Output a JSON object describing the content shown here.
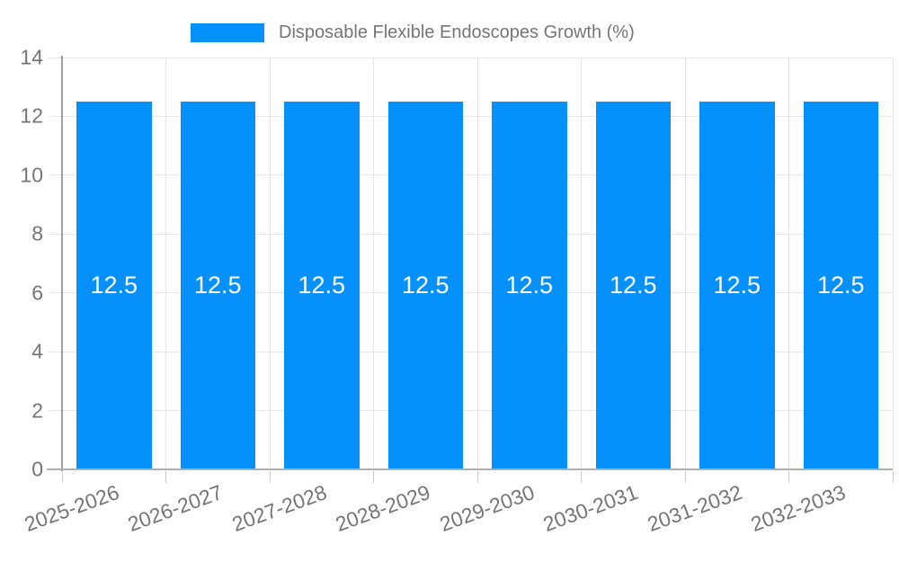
{
  "legend": {
    "label": "Disposable Flexible Endoscopes Growth (%)"
  },
  "chart_data": {
    "type": "bar",
    "title": "",
    "categories": [
      "2025-2026",
      "2026-2027",
      "2027-2028",
      "2028-2029",
      "2029-2030",
      "2030-2031",
      "2031-2032",
      "2032-2033"
    ],
    "series": [
      {
        "name": "Disposable Flexible Endoscopes Growth (%)",
        "color": "#0590fa",
        "values": [
          12.5,
          12.5,
          12.5,
          12.5,
          12.5,
          12.5,
          12.5,
          12.5
        ]
      }
    ],
    "xlabel": "",
    "ylabel": "",
    "ylim": [
      0,
      14
    ],
    "yticks": [
      0,
      2,
      4,
      6,
      8,
      10,
      12,
      14
    ],
    "grid": true,
    "legend_position": "top",
    "bar_value_labels": [
      "12.5",
      "12.5",
      "12.5",
      "12.5",
      "12.5",
      "12.5",
      "12.5",
      "12.5"
    ],
    "colors": {
      "bar": "#0590fa",
      "grid": "#e6e6e6",
      "axis_y": "#9e9e9e",
      "baseline": "#b0b0b0",
      "tick": "#cccccc",
      "label": "#757575",
      "bar_label": "#ffffff"
    }
  }
}
